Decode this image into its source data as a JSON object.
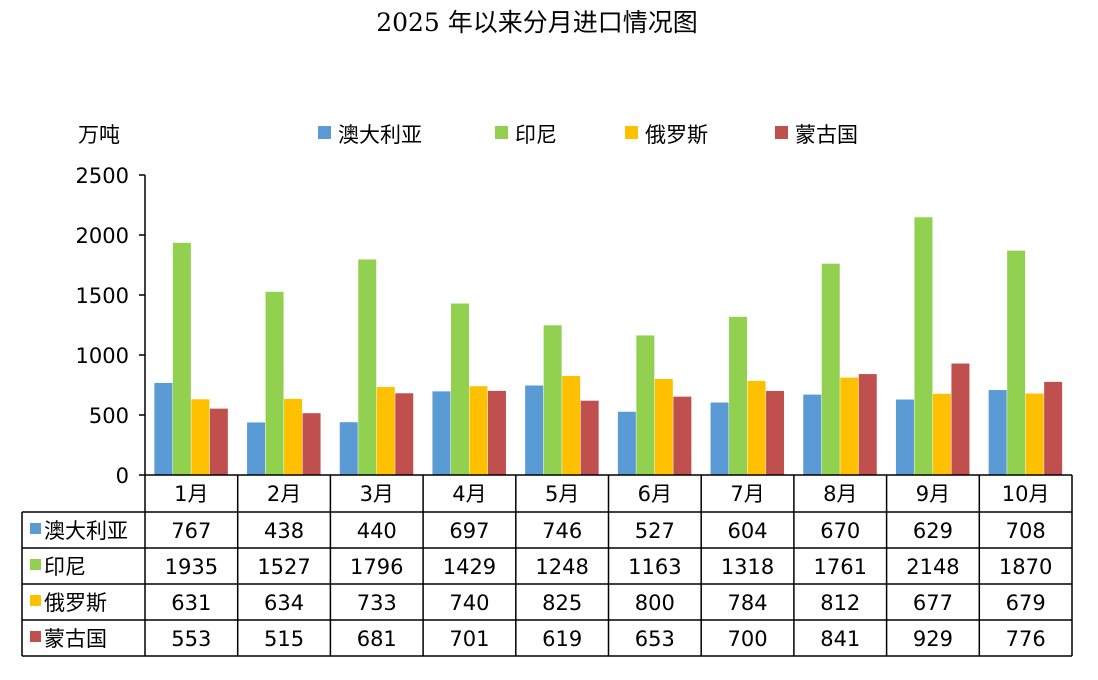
{
  "chart_data": {
    "type": "bar",
    "title": "2025 年以来分月进口情况图",
    "ylabel": "万吨",
    "xlabel": "",
    "ylim": [
      0,
      2500
    ],
    "yticks": [
      "0",
      "500",
      "1000",
      "1500",
      "2000",
      "2500"
    ],
    "categories": [
      "1月",
      "2月",
      "3月",
      "4月",
      "5月",
      "6月",
      "7月",
      "8月",
      "9月",
      "10月"
    ],
    "legend_position": "top",
    "series": [
      {
        "name": "澳大利亚",
        "color": "#5B9BD5",
        "values": [
          767,
          438,
          440,
          697,
          746,
          527,
          604,
          670,
          629,
          708
        ]
      },
      {
        "name": "印尼",
        "color": "#92D050",
        "values": [
          1935,
          1527,
          1796,
          1429,
          1248,
          1163,
          1318,
          1761,
          2148,
          1870
        ]
      },
      {
        "name": "俄罗斯",
        "color": "#FFC000",
        "values": [
          631,
          634,
          733,
          740,
          825,
          800,
          784,
          812,
          677,
          679
        ]
      },
      {
        "name": "蒙古国",
        "color": "#C0504D",
        "values": [
          553,
          515,
          681,
          701,
          619,
          653,
          700,
          841,
          929,
          776
        ]
      }
    ]
  }
}
